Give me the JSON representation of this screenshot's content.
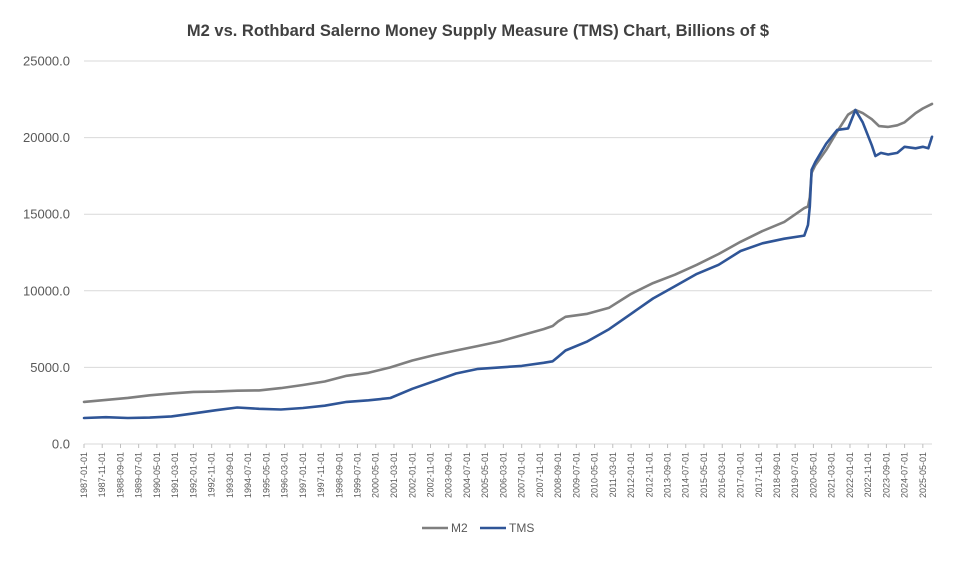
{
  "chart_data": {
    "type": "line",
    "title": "M2 vs. Rothbard Salerno Money Supply Measure (TMS) Chart, Billions of $",
    "xlabel": "",
    "ylabel": "",
    "ylim": [
      0,
      25000
    ],
    "yticks": [
      "25000.0",
      "20000.0",
      "15000.0",
      "10000.0",
      "5000.0",
      "0.0"
    ],
    "yticks_values": [
      25000,
      20000,
      15000,
      10000,
      5000,
      0
    ],
    "x_tick_labels": [
      "1987-01-01",
      "1987-11-01",
      "1988-09-01",
      "1989-07-01",
      "1990-05-01",
      "1991-03-01",
      "1992-01-01",
      "1992-11-01",
      "1993-09-01",
      "1994-07-01",
      "1995-05-01",
      "1996-03-01",
      "1997-01-01",
      "1997-11-01",
      "1998-09-01",
      "1999-07-01",
      "2000-05-01",
      "2001-03-01",
      "2002-01-01",
      "2002-11-01",
      "2003-09-01",
      "2004-07-01",
      "2005-05-01",
      "2006-03-01",
      "2007-01-01",
      "2007-11-01",
      "2008-09-01",
      "2009-07-01",
      "2010-05-01",
      "2011-03-01",
      "2012-01-01",
      "2012-11-01",
      "2013-09-01",
      "2014-07-01",
      "2015-05-01",
      "2016-03-01",
      "2017-01-01",
      "2017-11-01",
      "2018-09-01",
      "2019-07-01",
      "2020-05-01",
      "2021-03-01",
      "2022-01-01",
      "2022-11-01",
      "2023-09-01",
      "2024-07-01",
      "2025-05-01"
    ],
    "x_range": [
      "1987-01-01",
      "2025-10-01"
    ],
    "grid": true,
    "legend_position": "bottom",
    "series": [
      {
        "name": "M2",
        "color": "#7f7f7f",
        "points": [
          [
            "1987-01-01",
            2750
          ],
          [
            "1988-01-01",
            2880
          ],
          [
            "1989-01-01",
            3010
          ],
          [
            "1990-01-01",
            3180
          ],
          [
            "1991-01-01",
            3300
          ],
          [
            "1992-01-01",
            3400
          ],
          [
            "1993-01-01",
            3420
          ],
          [
            "1994-01-01",
            3480
          ],
          [
            "1995-01-01",
            3500
          ],
          [
            "1996-01-01",
            3650
          ],
          [
            "1997-01-01",
            3850
          ],
          [
            "1998-01-01",
            4080
          ],
          [
            "1999-01-01",
            4450
          ],
          [
            "2000-01-01",
            4650
          ],
          [
            "2001-01-01",
            5000
          ],
          [
            "2002-01-01",
            5450
          ],
          [
            "2003-01-01",
            5800
          ],
          [
            "2004-01-01",
            6100
          ],
          [
            "2005-01-01",
            6400
          ],
          [
            "2006-01-01",
            6700
          ],
          [
            "2007-01-01",
            7100
          ],
          [
            "2008-01-01",
            7500
          ],
          [
            "2008-06-01",
            7700
          ],
          [
            "2008-09-01",
            8000
          ],
          [
            "2009-01-01",
            8300
          ],
          [
            "2010-01-01",
            8500
          ],
          [
            "2011-01-01",
            8900
          ],
          [
            "2012-01-01",
            9800
          ],
          [
            "2013-01-01",
            10500
          ],
          [
            "2014-01-01",
            11050
          ],
          [
            "2015-01-01",
            11700
          ],
          [
            "2016-01-01",
            12400
          ],
          [
            "2017-01-01",
            13200
          ],
          [
            "2018-01-01",
            13900
          ],
          [
            "2019-01-01",
            14500
          ],
          [
            "2019-12-01",
            15400
          ],
          [
            "2020-02-01",
            15500
          ],
          [
            "2020-03-01",
            16100
          ],
          [
            "2020-04-01",
            17700
          ],
          [
            "2020-06-01",
            18200
          ],
          [
            "2020-12-01",
            19200
          ],
          [
            "2021-06-01",
            20400
          ],
          [
            "2021-12-01",
            21500
          ],
          [
            "2022-04-01",
            21800
          ],
          [
            "2022-08-01",
            21600
          ],
          [
            "2023-01-01",
            21200
          ],
          [
            "2023-05-01",
            20750
          ],
          [
            "2023-10-01",
            20700
          ],
          [
            "2024-03-01",
            20800
          ],
          [
            "2024-07-01",
            21000
          ],
          [
            "2025-01-01",
            21600
          ],
          [
            "2025-05-01",
            21900
          ],
          [
            "2025-10-01",
            22200
          ]
        ]
      },
      {
        "name": "TMS",
        "color": "#2f5597",
        "points": [
          [
            "1987-01-01",
            1700
          ],
          [
            "1988-01-01",
            1750
          ],
          [
            "1989-01-01",
            1700
          ],
          [
            "1990-01-01",
            1720
          ],
          [
            "1991-01-01",
            1800
          ],
          [
            "1992-01-01",
            2000
          ],
          [
            "1993-01-01",
            2200
          ],
          [
            "1994-01-01",
            2380
          ],
          [
            "1995-01-01",
            2300
          ],
          [
            "1996-01-01",
            2250
          ],
          [
            "1997-01-01",
            2350
          ],
          [
            "1998-01-01",
            2500
          ],
          [
            "1999-01-01",
            2750
          ],
          [
            "2000-01-01",
            2850
          ],
          [
            "2001-01-01",
            3000
          ],
          [
            "2002-01-01",
            3600
          ],
          [
            "2003-01-01",
            4100
          ],
          [
            "2004-01-01",
            4600
          ],
          [
            "2005-01-01",
            4900
          ],
          [
            "2006-01-01",
            5000
          ],
          [
            "2007-01-01",
            5100
          ],
          [
            "2008-01-01",
            5300
          ],
          [
            "2008-06-01",
            5400
          ],
          [
            "2008-09-01",
            5700
          ],
          [
            "2009-01-01",
            6100
          ],
          [
            "2010-01-01",
            6700
          ],
          [
            "2011-01-01",
            7500
          ],
          [
            "2012-01-01",
            8500
          ],
          [
            "2013-01-01",
            9500
          ],
          [
            "2014-01-01",
            10300
          ],
          [
            "2015-01-01",
            11100
          ],
          [
            "2016-01-01",
            11700
          ],
          [
            "2017-01-01",
            12600
          ],
          [
            "2018-01-01",
            13100
          ],
          [
            "2019-01-01",
            13400
          ],
          [
            "2019-12-01",
            13600
          ],
          [
            "2020-02-01",
            14300
          ],
          [
            "2020-03-01",
            15500
          ],
          [
            "2020-04-01",
            17900
          ],
          [
            "2020-06-01",
            18400
          ],
          [
            "2020-12-01",
            19600
          ],
          [
            "2021-06-01",
            20500
          ],
          [
            "2021-12-01",
            20600
          ],
          [
            "2022-04-01",
            21800
          ],
          [
            "2022-08-01",
            21000
          ],
          [
            "2023-01-01",
            19500
          ],
          [
            "2023-03-01",
            18800
          ],
          [
            "2023-06-01",
            19000
          ],
          [
            "2023-10-01",
            18900
          ],
          [
            "2024-03-01",
            19000
          ],
          [
            "2024-07-01",
            19400
          ],
          [
            "2025-01-01",
            19300
          ],
          [
            "2025-05-01",
            19400
          ],
          [
            "2025-08-01",
            19300
          ],
          [
            "2025-10-01",
            20050
          ]
        ]
      }
    ]
  }
}
